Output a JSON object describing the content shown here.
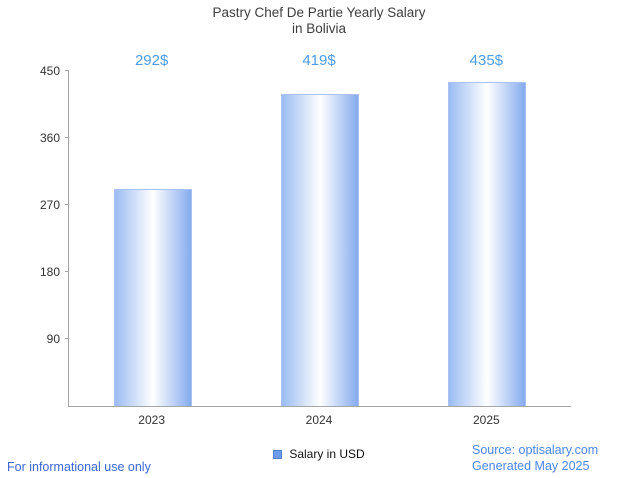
{
  "chart_data": {
    "type": "bar",
    "title": "Pastry Chef De Partie Yearly Salary",
    "subtitle": "in Bolivia",
    "categories": [
      "2023",
      "2024",
      "2025"
    ],
    "values": [
      292,
      419,
      435
    ],
    "value_labels": [
      "292$",
      "419$",
      "435$"
    ],
    "ylim": [
      0,
      450
    ],
    "yticks": [
      90,
      180,
      270,
      360,
      450
    ],
    "grid": false,
    "legend": [
      "Salary in USD"
    ],
    "legend_position": "bottom"
  },
  "footer": {
    "left": "For informational use only",
    "source": "Source: optisalary.com",
    "generated": "Generated May 2025"
  },
  "colors": {
    "value_label": "#4d9be4",
    "footer_left": "#3a66d6",
    "footer_right": "#4a86e8",
    "bar_edge_left": "#9bbcf2",
    "bar_center": "#ffffff",
    "bar_edge_right": "#85abee",
    "bar_border": "#a9c2f1",
    "legend_swatch_fill": "#6f9ce6",
    "legend_swatch_border": "#4f7fd0",
    "axis": "#a6a6a6",
    "title_text": "#3d3d3d"
  }
}
